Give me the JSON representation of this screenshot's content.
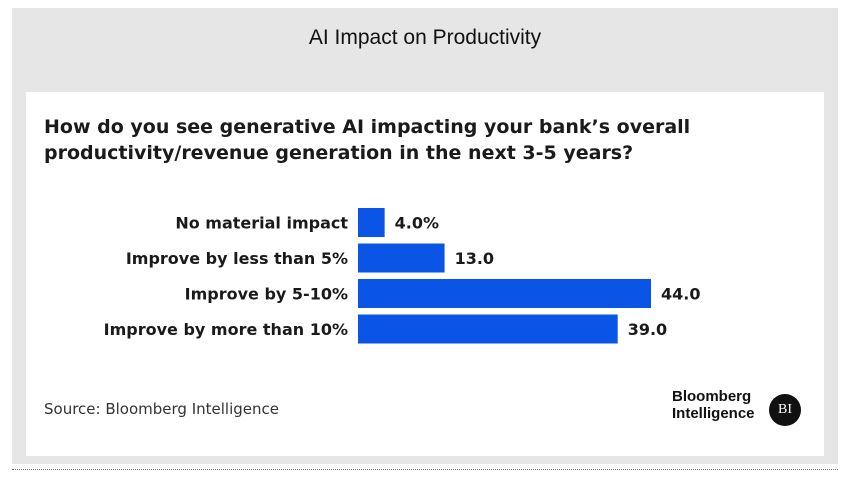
{
  "header": {
    "title": "AI Impact on Productivity"
  },
  "chart_data": {
    "type": "bar",
    "orientation": "horizontal",
    "title": "How do you see generative AI impacting your bank’s overall productivity/revenue generation in the next 3-5 years?",
    "categories": [
      "No material impact",
      "Improve by less than 5%",
      "Improve by 5-10%",
      "Improve by more than 10%"
    ],
    "values": [
      4.0,
      13.0,
      44.0,
      39.0
    ],
    "value_labels": [
      "4.0%",
      "13.0",
      "44.0",
      "39.0"
    ],
    "xlim": [
      0,
      44
    ],
    "grid": false,
    "legend": "none",
    "bar_color": "#0a55e6"
  },
  "footer": {
    "source": "Source: Bloomberg Intelligence",
    "logo_line1": "Bloomberg",
    "logo_line2": "Intelligence",
    "logo_badge": "BI"
  }
}
